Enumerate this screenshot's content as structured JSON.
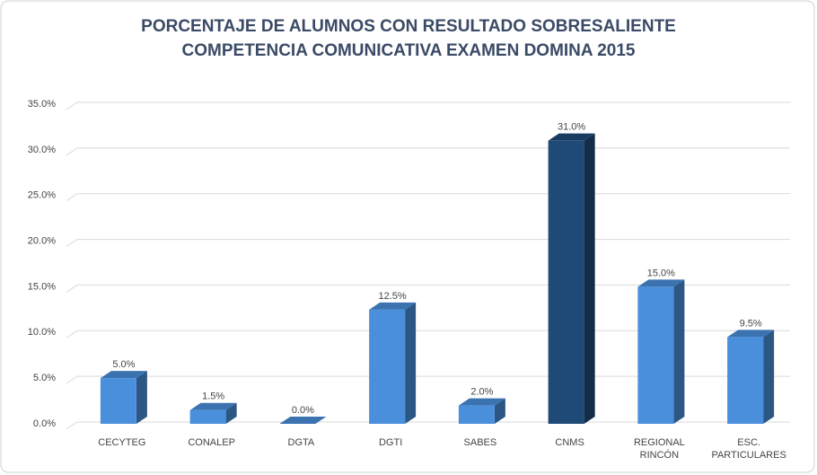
{
  "chart_data": {
    "type": "bar3d",
    "title": [
      "PORCENTAJE DE ALUMNOS CON RESULTADO SOBRESALIENTE",
      "COMPETENCIA COMUNICATIVA EXAMEN DOMINA 2015"
    ],
    "categories": [
      "CECYTEG",
      "CONALEP",
      "DGTA",
      "DGTI",
      "SABES",
      "CNMS",
      "REGIONAL RINCÓN",
      "ESC. PARTICULARES"
    ],
    "values": [
      5.0,
      1.5,
      0.0,
      12.5,
      2.0,
      31.0,
      15.0,
      9.5
    ],
    "value_labels": [
      "5.0%",
      "1.5%",
      "0.0%",
      "12.5%",
      "2.0%",
      "31.0%",
      "15.0%",
      "9.5%"
    ],
    "colors": [
      "#4a8fdc",
      "#4a8fdc",
      "#4a8fdc",
      "#4a8fdc",
      "#4a8fdc",
      "#1f4a78",
      "#4a8fdc",
      "#4a8fdc"
    ],
    "ylim": [
      0,
      35
    ],
    "yticks": [
      {
        "value": 0,
        "label": "0.0%"
      },
      {
        "value": 5,
        "label": "5.0%"
      },
      {
        "value": 10,
        "label": "10.0%"
      },
      {
        "value": 15,
        "label": "15.0%"
      },
      {
        "value": 20,
        "label": "20.0%"
      },
      {
        "value": 25,
        "label": "25.0%"
      },
      {
        "value": 30,
        "label": "30.0%"
      },
      {
        "value": 35,
        "label": "35.0%"
      }
    ],
    "grid": true
  }
}
